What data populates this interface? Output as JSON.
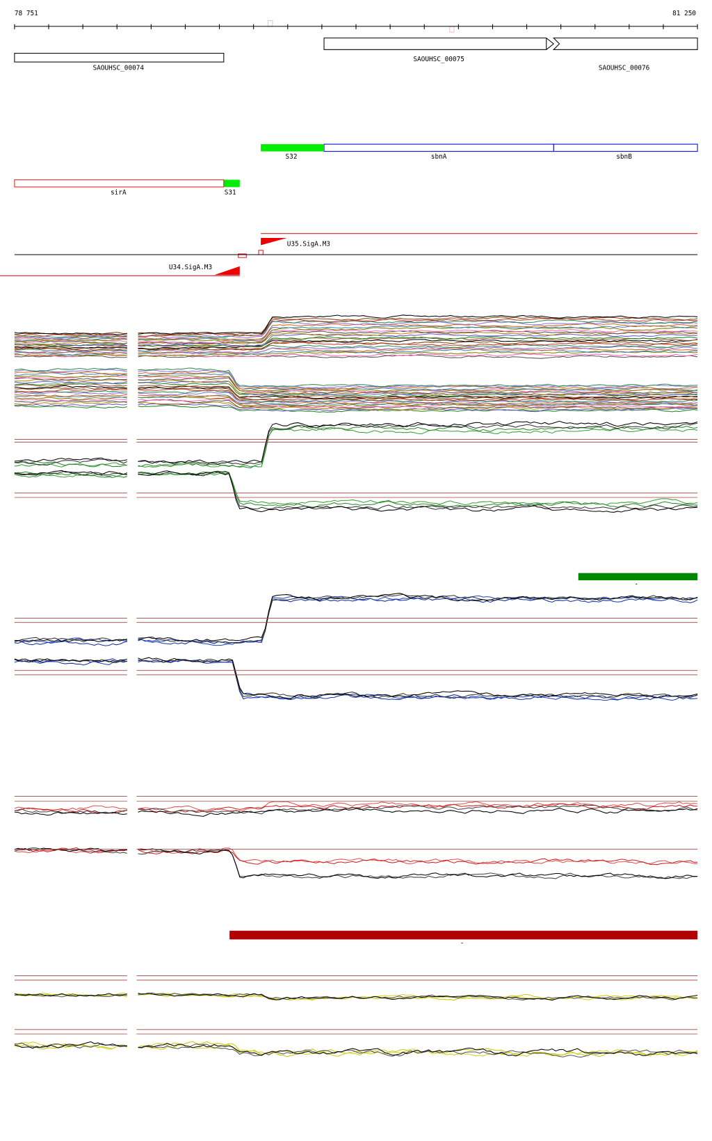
{
  "ruler": {
    "start": "78 751",
    "end": "81 250"
  },
  "genes": [
    {
      "label": "SAOUHSC_00074"
    },
    {
      "label": "SAOUHSC_00075"
    },
    {
      "label": "SAOUHSC_00076"
    }
  ],
  "features": [
    {
      "label": "S32"
    },
    {
      "label": "sbnA"
    },
    {
      "label": "sbnB"
    },
    {
      "label": "sirA"
    },
    {
      "label": "S31"
    }
  ],
  "promoters": [
    {
      "label": "U35.SigA.M3"
    },
    {
      "label": "U34.SigA.M3"
    }
  ],
  "segments": [
    {
      "label": "-"
    },
    {
      "label": "-"
    }
  ]
}
